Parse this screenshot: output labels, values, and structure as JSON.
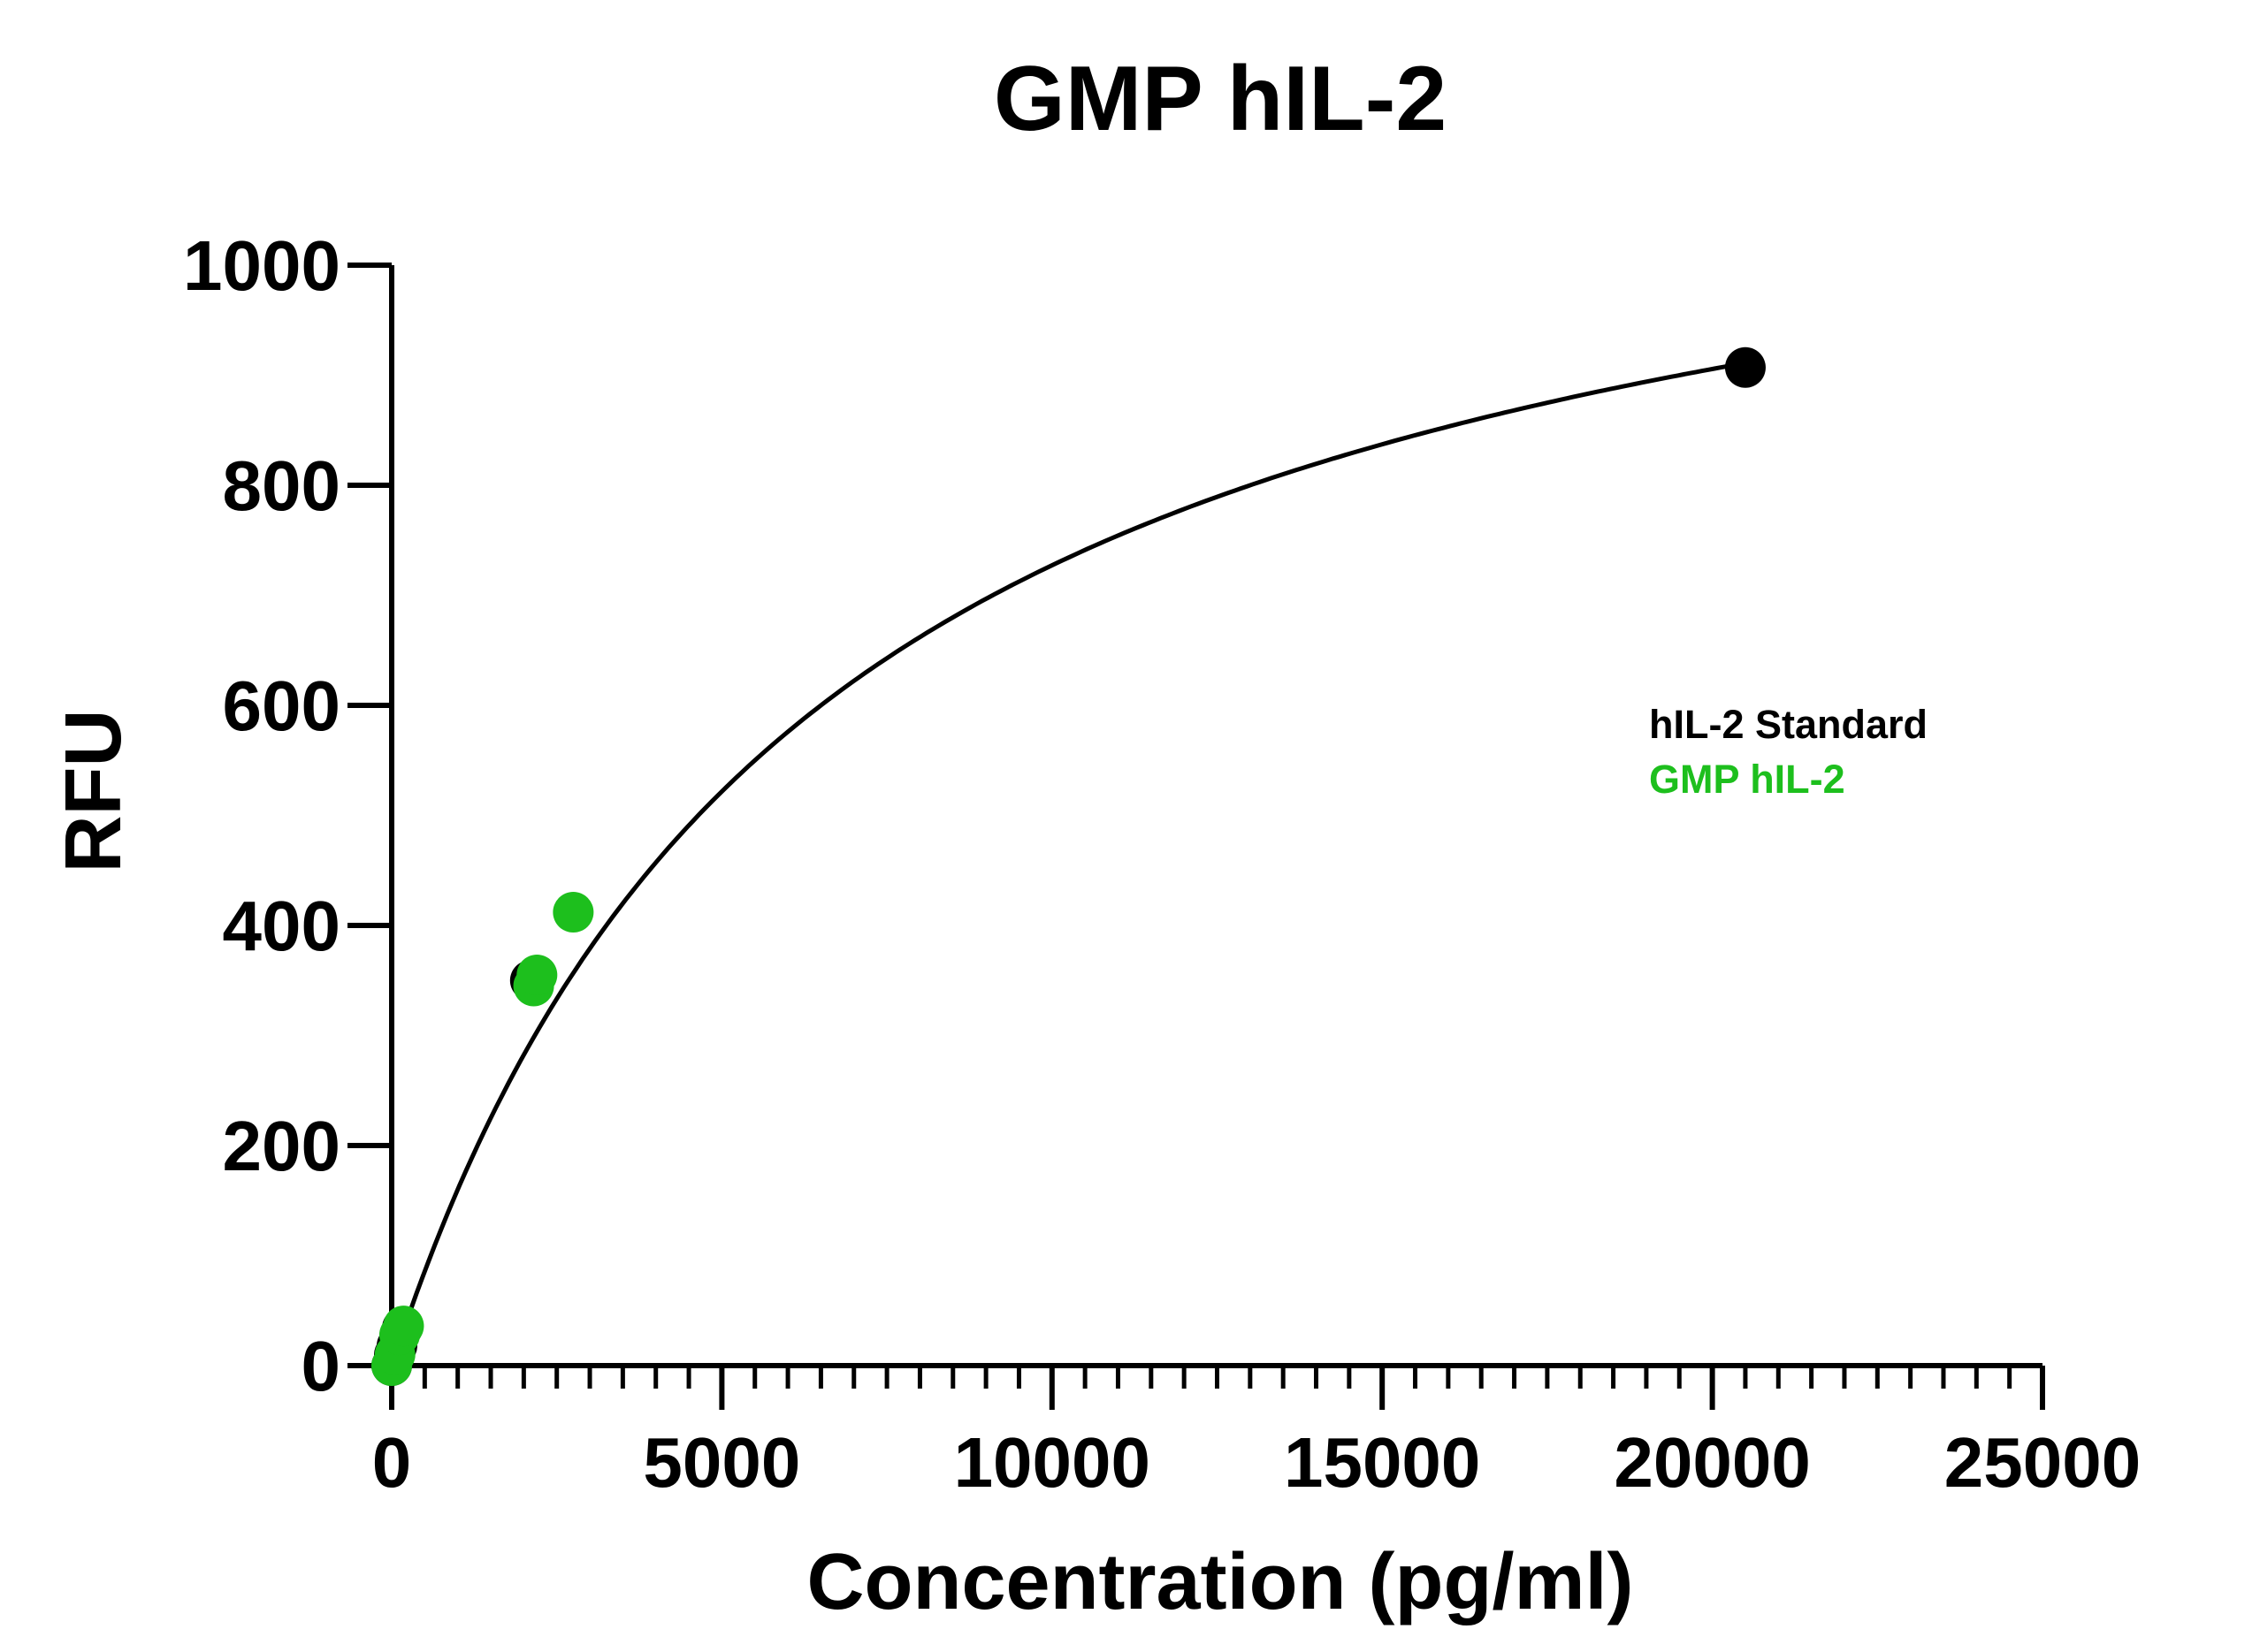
{
  "chart_data": {
    "type": "scatter",
    "title": "GMP hIL-2",
    "xlabel": "Concentration (pg/ml)",
    "ylabel": "RFU",
    "xlim": [
      0,
      25000
    ],
    "ylim": [
      0,
      1000
    ],
    "xticks": [
      0,
      5000,
      10000,
      15000,
      20000,
      25000
    ],
    "xtick_labels": [
      "0",
      "5000",
      "10000",
      "15000",
      "20000",
      "25000"
    ],
    "yticks": [
      0,
      200,
      400,
      600,
      800,
      1000
    ],
    "ytick_labels": [
      "0",
      "200",
      "400",
      "600",
      "800",
      "1000"
    ],
    "grid": false,
    "legend": {
      "position": "right"
    },
    "series": [
      {
        "name": "hIL-2 Standard",
        "color": "#000000",
        "points": [
          {
            "x": 0,
            "y": 0
          },
          {
            "x": 40,
            "y": 10
          },
          {
            "x": 80,
            "y": 18
          },
          {
            "x": 160,
            "y": 34
          },
          {
            "x": 2100,
            "y": 350
          },
          {
            "x": 20500,
            "y": 907
          }
        ]
      },
      {
        "name": "GMP hIL-2",
        "color": "#1dbf1d",
        "points": [
          {
            "x": 0,
            "y": 0
          },
          {
            "x": 50,
            "y": 10
          },
          {
            "x": 120,
            "y": 28
          },
          {
            "x": 180,
            "y": 36
          },
          {
            "x": 2150,
            "y": 345
          },
          {
            "x": 2200,
            "y": 355
          },
          {
            "x": 2750,
            "y": 412
          }
        ]
      }
    ],
    "fit_curve": {
      "model": "saturation",
      "color": "#000000",
      "ymax": 1200,
      "half_max": 6500
    }
  }
}
